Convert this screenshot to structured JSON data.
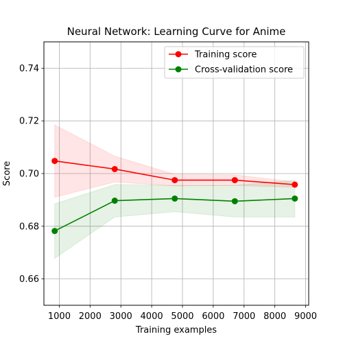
{
  "chart_data": {
    "type": "line",
    "title": "Neural Network: Learning Curve for Anime",
    "xlabel": "Training examples",
    "ylabel": "Score",
    "xlim": [
      500,
      9100
    ],
    "ylim": [
      0.65,
      0.75
    ],
    "xticks": [
      1000,
      2000,
      3000,
      4000,
      5000,
      6000,
      7000,
      8000,
      9000
    ],
    "yticks": [
      0.66,
      0.68,
      0.7,
      0.72,
      0.74
    ],
    "grid": true,
    "legend_position": "top-right",
    "x": [
      850,
      2800,
      4750,
      6700,
      8650
    ],
    "series": [
      {
        "name": "Training score",
        "color": "#ff0000",
        "band_color": "#ffcccc",
        "values": [
          0.7048,
          0.7017,
          0.6975,
          0.6975,
          0.6958
        ],
        "band_lower": [
          0.691,
          0.6968,
          0.6953,
          0.6955,
          0.6948
        ],
        "band_upper": [
          0.7185,
          0.7066,
          0.6997,
          0.6995,
          0.6968
        ]
      },
      {
        "name": "Cross-validation score",
        "color": "#008000",
        "band_color": "#cce6cc",
        "values": [
          0.6782,
          0.6897,
          0.6905,
          0.6895,
          0.6905
        ],
        "band_lower": [
          0.6678,
          0.6835,
          0.6855,
          0.6835,
          0.6835
        ],
        "band_upper": [
          0.6885,
          0.6958,
          0.6955,
          0.6955,
          0.6975
        ]
      }
    ]
  }
}
